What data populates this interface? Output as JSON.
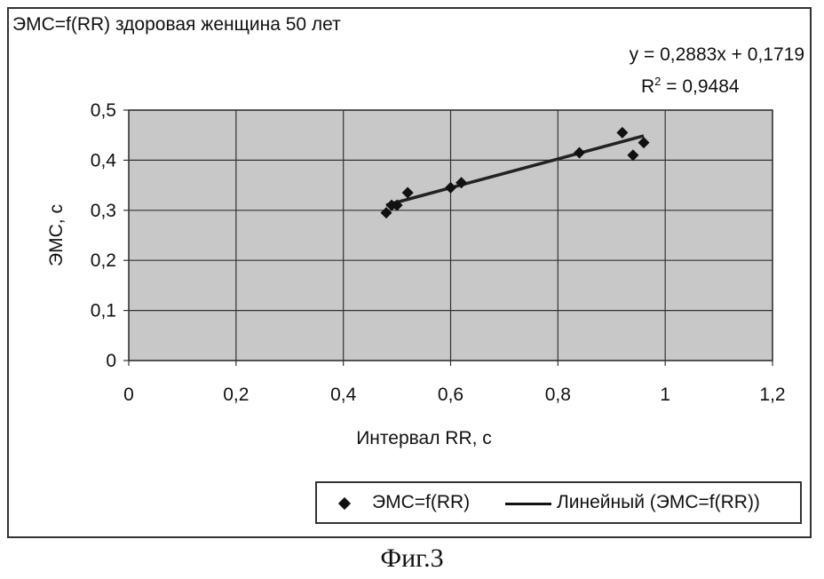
{
  "chart_data": {
    "type": "scatter",
    "title": "ЭМС=f(RR) здоровая женщина 50 лет",
    "xlabel": "Интервал RR, c",
    "ylabel": "ЭМС, с",
    "xlim": [
      0,
      1.2
    ],
    "ylim": [
      0,
      0.5
    ],
    "x_ticks": [
      "0",
      "0,2",
      "0,4",
      "0,6",
      "0,8",
      "1",
      "1,2"
    ],
    "y_ticks": [
      "0",
      "0,1",
      "0,2",
      "0,3",
      "0,4",
      "0,5"
    ],
    "grid": true,
    "series": [
      {
        "name": "ЭМС=f(RR)",
        "marker": "diamond",
        "points": [
          {
            "x": 0.48,
            "y": 0.295
          },
          {
            "x": 0.49,
            "y": 0.31
          },
          {
            "x": 0.5,
            "y": 0.31
          },
          {
            "x": 0.52,
            "y": 0.335
          },
          {
            "x": 0.6,
            "y": 0.345
          },
          {
            "x": 0.62,
            "y": 0.355
          },
          {
            "x": 0.84,
            "y": 0.415
          },
          {
            "x": 0.92,
            "y": 0.455
          },
          {
            "x": 0.94,
            "y": 0.41
          },
          {
            "x": 0.96,
            "y": 0.435
          }
        ]
      }
    ],
    "trendline": {
      "name": "Линейный (ЭМС=f(RR))",
      "slope": 0.2883,
      "intercept": 0.1719,
      "x_range": [
        0.48,
        0.96
      ],
      "equation": "y = 0,2883x + 0,1719",
      "r2_label": "R",
      "r2_sup": "2",
      "r2_value": " = 0,9484"
    },
    "legend_position": "bottom-right",
    "colors": {
      "plot_background": "#c8c8c8",
      "grid": "#333333",
      "marker": "#111111",
      "trendline": "#222222"
    }
  },
  "caption": "Фиг.3"
}
